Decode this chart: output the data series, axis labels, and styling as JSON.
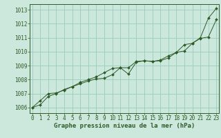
{
  "background_color": "#cce8dc",
  "grid_color": "#99ccbb",
  "line_color": "#2d5a27",
  "marker_color": "#2d5a27",
  "title": "Graphe pression niveau de la mer (hPa)",
  "tick_fontsize": 5.5,
  "title_fontsize": 6.5,
  "ylim": [
    1005.6,
    1013.4
  ],
  "xlim": [
    -0.3,
    23.3
  ],
  "yticks": [
    1006,
    1007,
    1008,
    1009,
    1010,
    1011,
    1012,
    1013
  ],
  "xticks": [
    0,
    1,
    2,
    3,
    4,
    5,
    6,
    7,
    8,
    9,
    10,
    11,
    12,
    13,
    14,
    15,
    16,
    17,
    18,
    19,
    20,
    21,
    22,
    23
  ],
  "series1_x": [
    0,
    1,
    2,
    3,
    4,
    5,
    6,
    7,
    8,
    9,
    10,
    11,
    12,
    13,
    14,
    15,
    16,
    17,
    18,
    19,
    20,
    21,
    22,
    23
  ],
  "series1_y": [
    1006.0,
    1006.2,
    1006.8,
    1007.0,
    1007.3,
    1007.5,
    1007.8,
    1008.0,
    1008.2,
    1008.5,
    1008.8,
    1008.85,
    1008.4,
    1009.25,
    1009.35,
    1009.3,
    1009.35,
    1009.55,
    1009.95,
    1010.05,
    1010.6,
    1011.0,
    1012.4,
    1013.1
  ],
  "series2_x": [
    0,
    1,
    2,
    3,
    4,
    5,
    6,
    7,
    8,
    9,
    10,
    11,
    12,
    13,
    14,
    15,
    16,
    17,
    18,
    19,
    20,
    21,
    22,
    23
  ],
  "series2_y": [
    1006.0,
    1006.5,
    1007.0,
    1007.05,
    1007.25,
    1007.5,
    1007.7,
    1007.9,
    1008.05,
    1008.1,
    1008.35,
    1008.85,
    1008.85,
    1009.3,
    1009.35,
    1009.3,
    1009.4,
    1009.7,
    1009.95,
    1010.5,
    1010.6,
    1010.95,
    1011.05,
    1012.3
  ]
}
